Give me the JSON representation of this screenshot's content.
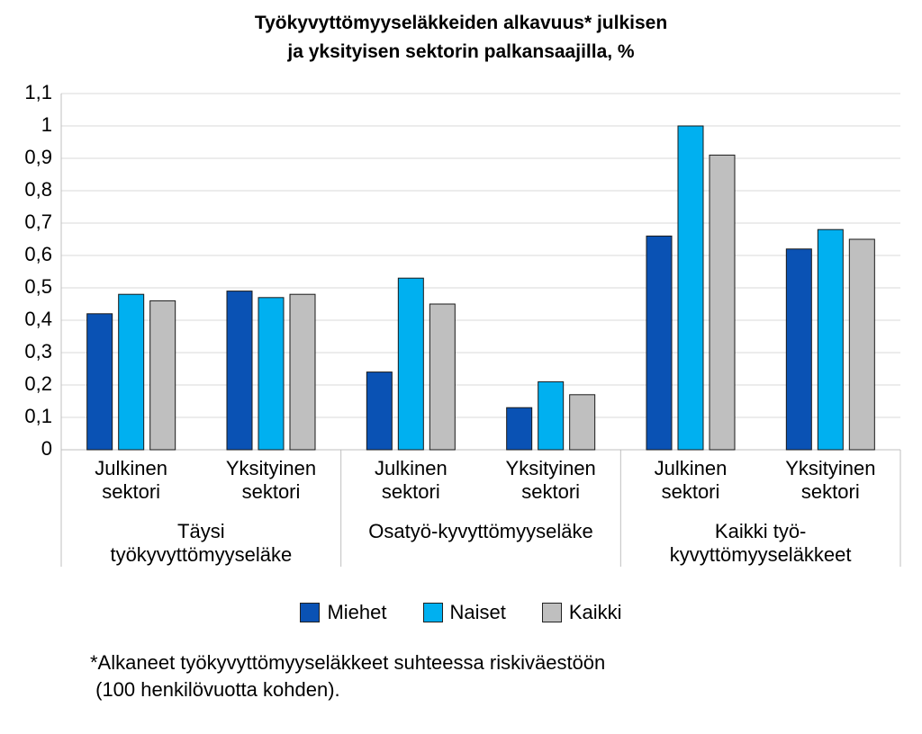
{
  "chart_data": {
    "type": "bar",
    "title": [
      "Työkyvyttömyyseläkkeiden alkavuus* julkisen",
      "ja yksityisen sektorin palkansaajilla, %"
    ],
    "categories": [
      "Julkinen sektori",
      "Yksityinen sektori",
      "Julkinen sektori",
      "Yksityinen sektori",
      "Julkinen sektori",
      "Yksityinen sektori"
    ],
    "groups": [
      "Täysi työkyvyttömyyseläke",
      "Osatyö-kyvyttömyyseläke",
      "Kaikki työ-kyvyttömyyseläkkeet"
    ],
    "series": [
      {
        "name": "Miehet",
        "color": "#0a52b4",
        "values": [
          0.42,
          0.49,
          0.24,
          0.13,
          0.66,
          0.62
        ]
      },
      {
        "name": "Naiset",
        "color": "#00b0f0",
        "values": [
          0.48,
          0.47,
          0.53,
          0.21,
          1.0,
          0.68
        ]
      },
      {
        "name": "Kaikki",
        "color": "#bfbfbf",
        "values": [
          0.46,
          0.48,
          0.45,
          0.17,
          0.91,
          0.65
        ]
      }
    ],
    "ylim": [
      0,
      1.1
    ],
    "yticks": [
      0,
      {
        "value": 0.1,
        "label": "0,1"
      },
      {
        "value": 0.2,
        "label": "0,2"
      },
      {
        "value": 0.3,
        "label": "0,3"
      },
      {
        "value": 0.4,
        "label": "0,4"
      },
      {
        "value": 0.5,
        "label": "0,5"
      },
      {
        "value": 0.6,
        "label": "0,6"
      },
      {
        "value": 0.7,
        "label": "0,7"
      },
      {
        "value": 0.8,
        "label": "0,8"
      },
      {
        "value": 0.9,
        "label": "0,9"
      },
      1,
      {
        "value": 1.1,
        "label": "1,1"
      }
    ],
    "grid": true,
    "legend": "bottom",
    "footnote": [
      "*Alkaneet työkyvyttömyyseläkkeet suhteessa riskiväestöön",
      " (100 henkilövuotta kohden)."
    ]
  }
}
